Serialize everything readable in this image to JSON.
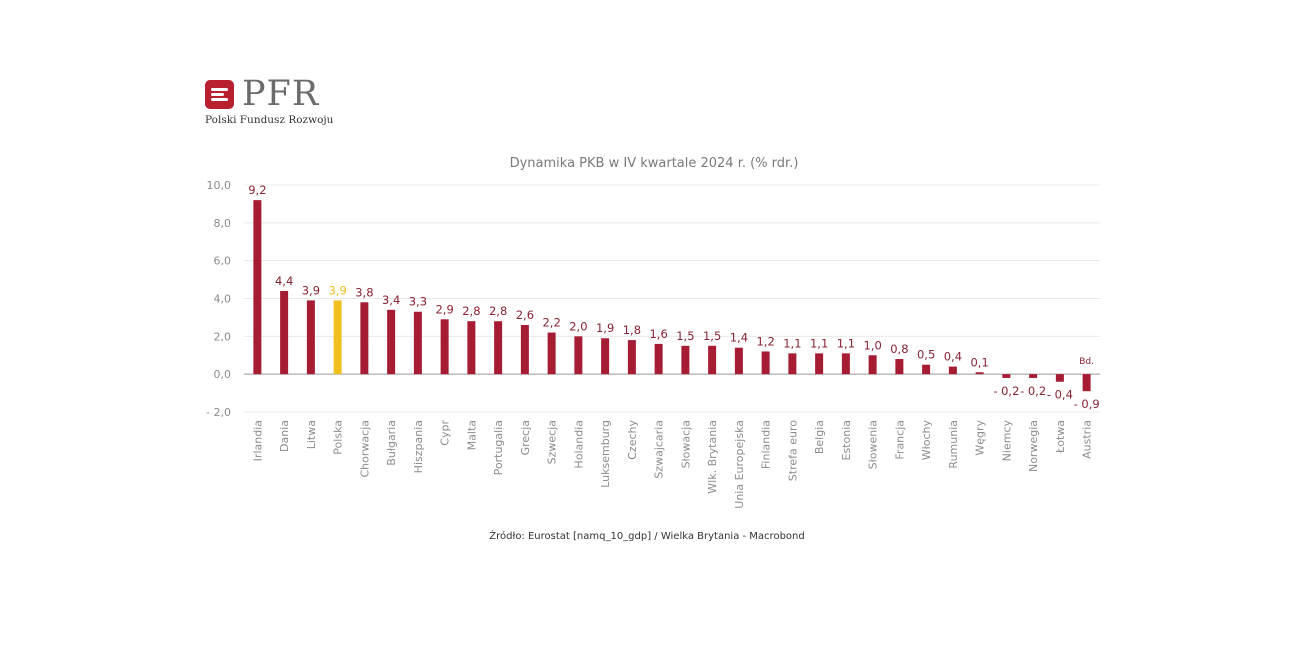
{
  "logo": {
    "name": "PFR",
    "subtitle": "Polski Fundusz Rozwoju"
  },
  "source": "Źródło: Eurostat [namq_10_gdp] / Wielka Brytania - Macrobond",
  "colors": {
    "bar": "#a61d33",
    "highlight": "#f0c020",
    "label": "#8a2233",
    "axis_text": "#8c8c8c",
    "grid": "#e8e8e8"
  },
  "chart_data": {
    "type": "bar",
    "title": "Dynamika PKB w IV kwartale 2024 r. (% rdr.)",
    "ylim": [
      -2,
      10
    ],
    "yticks": [
      10,
      8,
      6,
      4,
      2,
      0,
      -2
    ],
    "ytick_labels": [
      "10,0",
      "8,0",
      "6,0",
      "4,0",
      "2,0",
      "0,0",
      "- 2,0"
    ],
    "grid": true,
    "highlight_category": "Polska",
    "categories": [
      "Irlandia",
      "Dania",
      "Litwa",
      "Polska",
      "Chorwacja",
      "Bułgaria",
      "Hiszpania",
      "Cypr",
      "Malta",
      "Portugalia",
      "Grecja",
      "Szwecja",
      "Holandia",
      "Luksemburg",
      "Czechy",
      "Szwajcaria",
      "Słowacja",
      "Wlk. Brytania",
      "Unia Europejska",
      "Finlandia",
      "Strefa euro",
      "Belgia",
      "Estonia",
      "Słowenia",
      "Francja",
      "Włochy",
      "Rumunia",
      "Węgry",
      "Niemcy",
      "Norwegia",
      "Łotwa",
      "Austria"
    ],
    "values": [
      9.2,
      4.4,
      3.9,
      3.9,
      3.8,
      3.4,
      3.3,
      2.9,
      2.8,
      2.8,
      2.6,
      2.2,
      2.0,
      1.9,
      1.8,
      1.6,
      1.5,
      1.5,
      1.4,
      1.2,
      1.1,
      1.1,
      1.1,
      1.0,
      0.8,
      0.5,
      0.4,
      0.1,
      -0.2,
      -0.2,
      -0.4,
      -0.9
    ],
    "data_labels": [
      "9,2",
      "4,4",
      "3,9",
      "3,9",
      "3,8",
      "3,4",
      "3,3",
      "2,9",
      "2,8",
      "2,8",
      "2,6",
      "2,2",
      "2,0",
      "1,9",
      "1,8",
      "1,6",
      "1,5",
      "1,5",
      "1,4",
      "1,2",
      "1,1",
      "1,1",
      "1,1",
      "1,0",
      "0,8",
      "0,5",
      "0,4",
      "0,1",
      "- 0,2",
      "- 0,2",
      "- 0,4",
      "- 0,9"
    ],
    "annotations": [
      {
        "category": "Austria",
        "text": "Bd."
      }
    ]
  }
}
